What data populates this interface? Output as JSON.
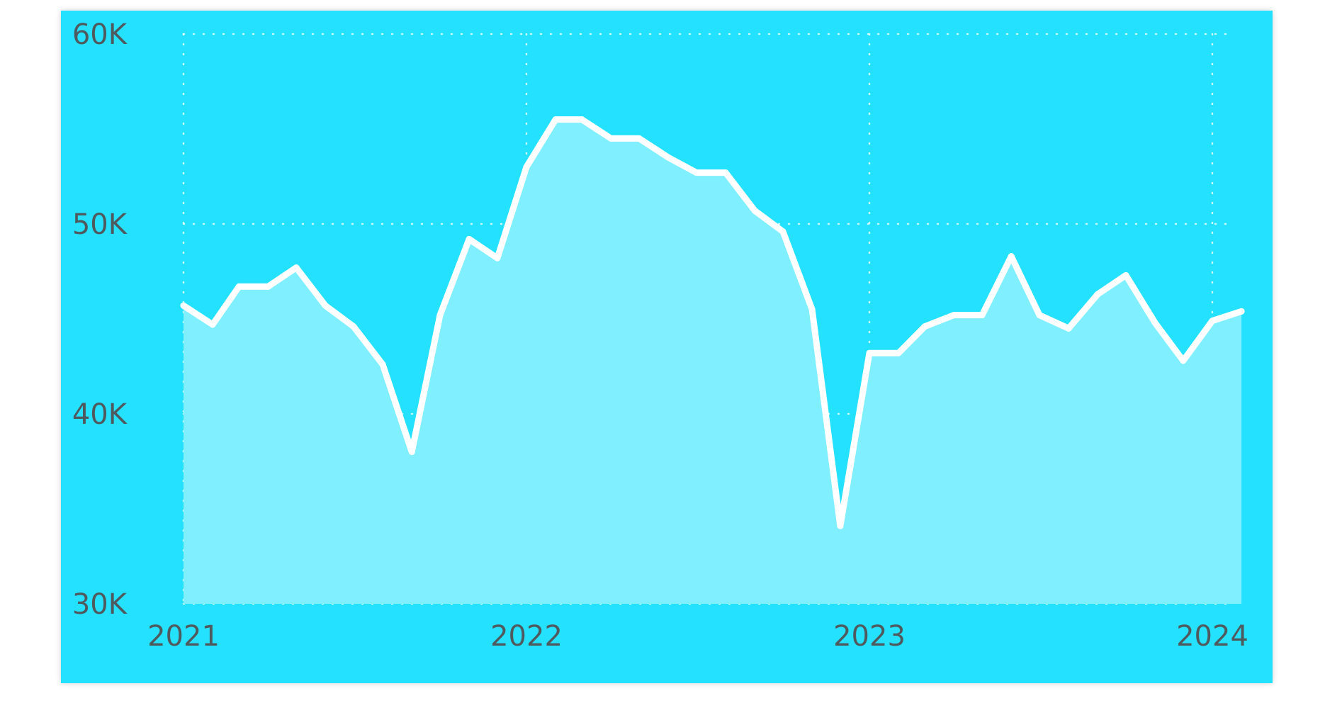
{
  "colors": {
    "background": "#24e2ff",
    "area_fill": "#80efff",
    "line": "#ffffff",
    "grid": "#ffffff",
    "tick_label": "#4f5a5f"
  },
  "chart_data": {
    "type": "area",
    "title": "",
    "xlabel": "",
    "ylabel": "",
    "grid": true,
    "grid_style": "dotted",
    "legend": "none",
    "x_type": "date",
    "xlim": [
      "2021-01-01",
      "2024-02-15"
    ],
    "ylim": [
      30000,
      60000
    ],
    "y_ticks": [
      30000,
      40000,
      50000,
      60000
    ],
    "y_tick_labels": [
      "30K",
      "40K",
      "50K",
      "60K"
    ],
    "x_ticks": [
      "2021-01-01",
      "2022-01-01",
      "2023-01-01",
      "2024-01-01"
    ],
    "x_tick_labels": [
      "2021",
      "2022",
      "2023",
      "2024"
    ],
    "series": [
      {
        "x": [
          "2021-01-01",
          "2021-02-01",
          "2021-03-01",
          "2021-04-01",
          "2021-05-01",
          "2021-06-01",
          "2021-07-01",
          "2021-08-01",
          "2021-09-01",
          "2021-10-01",
          "2021-11-01",
          "2021-12-01",
          "2022-01-01",
          "2022-02-01",
          "2022-03-01",
          "2022-04-01",
          "2022-05-01",
          "2022-06-01",
          "2022-07-01",
          "2022-08-01",
          "2022-09-01",
          "2022-10-01",
          "2022-11-01",
          "2022-12-01",
          "2023-01-01",
          "2023-02-01",
          "2023-03-01",
          "2023-04-01",
          "2023-05-01",
          "2023-06-01",
          "2023-07-01",
          "2023-08-01",
          "2023-09-01",
          "2023-10-01",
          "2023-11-01",
          "2023-12-01",
          "2024-01-01",
          "2024-02-01"
        ],
        "values": [
          45700,
          44700,
          46700,
          46700,
          47700,
          45700,
          44600,
          42600,
          38000,
          45200,
          49200,
          48200,
          53000,
          55500,
          55500,
          54500,
          54500,
          53500,
          52700,
          52700,
          50700,
          49600,
          45500,
          34100,
          43200,
          43200,
          44600,
          45200,
          45200,
          48300,
          45200,
          44500,
          46300,
          47300,
          44800,
          42800,
          44900,
          45400
        ]
      }
    ]
  }
}
